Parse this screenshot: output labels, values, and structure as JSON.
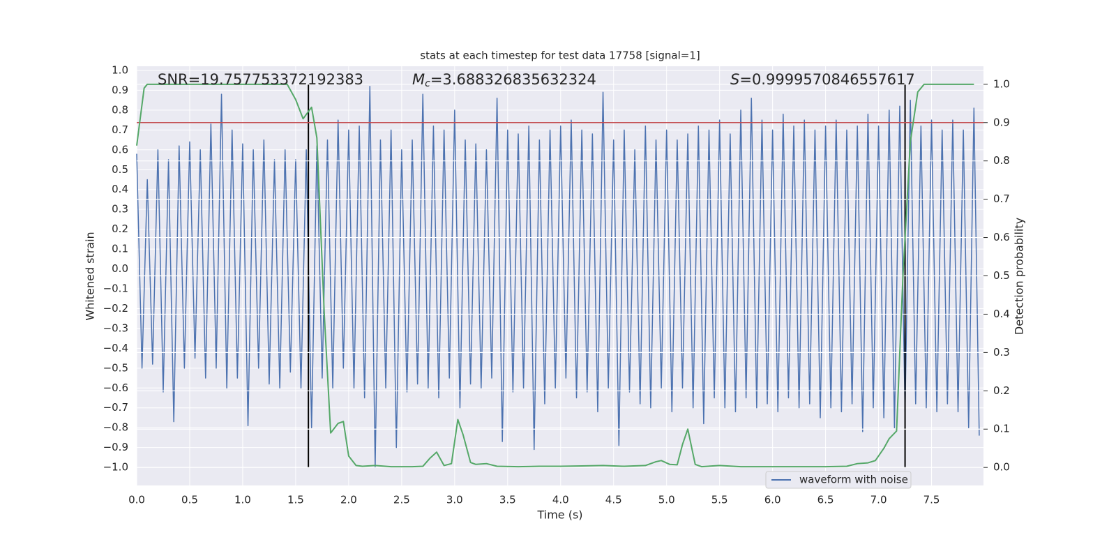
{
  "chart_data": {
    "type": "line",
    "title": "stats at each timestep for test data 17758 [signal=1]",
    "xlabel": "Time (s)",
    "ylabel": "Whitened strain",
    "y2label": "Detection probability",
    "background": "#eaeaf2",
    "grid": true,
    "legend": "lower right",
    "xlim": [
      0,
      7.99
    ],
    "ylim": [
      -1.091,
      1.021
    ],
    "y2lim": [
      -0.047,
      1.047
    ],
    "xticks": [
      {
        "value": 0,
        "label": "0.0"
      },
      0.5,
      {
        "value": 1,
        "label": "1.0"
      },
      1.5,
      {
        "value": 2,
        "label": "2.0"
      },
      2.5,
      {
        "value": 3,
        "label": "3.0"
      },
      3.5,
      {
        "value": 4,
        "label": "4.0"
      },
      4.5,
      {
        "value": 5,
        "label": "5.0"
      },
      5.5,
      {
        "value": 6,
        "label": "6.0"
      },
      6.5,
      {
        "value": 7,
        "label": "7.0"
      },
      7.5
    ],
    "yticks": [
      {
        "value": -1,
        "label": "−1.0"
      },
      {
        "value": -0.9,
        "label": "−0.9"
      },
      {
        "value": -0.8,
        "label": "−0.8"
      },
      {
        "value": -0.7,
        "label": "−0.7"
      },
      {
        "value": -0.6,
        "label": "−0.6"
      },
      {
        "value": -0.5,
        "label": "−0.5"
      },
      {
        "value": -0.4,
        "label": "−0.4"
      },
      {
        "value": -0.3,
        "label": "−0.3"
      },
      {
        "value": -0.2,
        "label": "−0.2"
      },
      {
        "value": -0.1,
        "label": "−0.1"
      },
      {
        "value": 0,
        "label": "0.0"
      },
      0.1,
      0.2,
      0.3,
      0.4,
      0.5,
      0.6,
      0.7,
      0.8,
      0.9,
      {
        "value": 1,
        "label": "1.0"
      }
    ],
    "y2ticks": [
      {
        "value": 0,
        "label": "0.0"
      },
      0.1,
      0.2,
      0.3,
      0.4,
      0.5,
      0.6,
      0.7,
      0.8,
      0.9,
      {
        "value": 1,
        "label": "1.0"
      }
    ],
    "annotations": [
      {
        "text": "SNR=19.757753372192383"
      },
      {
        "symbol": "M",
        "subscript": "c",
        "text": "=3.688326835632324"
      },
      {
        "symbol": "S",
        "text": "=0.9999570846557617"
      }
    ],
    "threshold": {
      "value": 0.9,
      "axis": "y2",
      "color": "#c44e52"
    },
    "vlines": {
      "x": [
        1.62,
        7.25
      ],
      "color": "#000000"
    },
    "series": [
      {
        "name": "waveform with noise",
        "color": "#4c72b0",
        "x": [
          0,
          0.05,
          0.1,
          0.15,
          0.2,
          0.25,
          0.3,
          0.35,
          0.4,
          0.45,
          0.5,
          0.55,
          0.6,
          0.65,
          0.7,
          0.75,
          0.8,
          0.85,
          0.9,
          0.95,
          1,
          1.05,
          1.1,
          1.15,
          1.2,
          1.25,
          1.3,
          1.35,
          1.4,
          1.45,
          1.5,
          1.55,
          1.6,
          1.65,
          1.7,
          1.75,
          1.8,
          1.85,
          1.9,
          1.95,
          2,
          2.05,
          2.1,
          2.15,
          2.2,
          2.25,
          2.3,
          2.35,
          2.4,
          2.45,
          2.5,
          2.55,
          2.6,
          2.65,
          2.7,
          2.75,
          2.8,
          2.85,
          2.9,
          2.95,
          3,
          3.05,
          3.1,
          3.15,
          3.2,
          3.25,
          3.3,
          3.35,
          3.4,
          3.45,
          3.5,
          3.55,
          3.6,
          3.65,
          3.7,
          3.75,
          3.8,
          3.85,
          3.9,
          3.95,
          4,
          4.05,
          4.1,
          4.15,
          4.2,
          4.25,
          4.3,
          4.35,
          4.4,
          4.45,
          4.5,
          4.55,
          4.6,
          4.65,
          4.7,
          4.75,
          4.8,
          4.85,
          4.9,
          4.95,
          5,
          5.05,
          5.1,
          5.15,
          5.2,
          5.25,
          5.3,
          5.35,
          5.4,
          5.45,
          5.5,
          5.55,
          5.6,
          5.65,
          5.7,
          5.75,
          5.8,
          5.85,
          5.9,
          5.95,
          6,
          6.05,
          6.1,
          6.15,
          6.2,
          6.25,
          6.3,
          6.35,
          6.4,
          6.45,
          6.5,
          6.55,
          6.6,
          6.65,
          6.7,
          6.75,
          6.8,
          6.85,
          6.9,
          6.95,
          7,
          7.05,
          7.1,
          7.15,
          7.2,
          7.25,
          7.3,
          7.35,
          7.4,
          7.45,
          7.5,
          7.55,
          7.6,
          7.65,
          7.7,
          7.75,
          7.8,
          7.85,
          7.9,
          7.95
        ],
        "values": [
          0.58,
          -0.5,
          0.45,
          -0.48,
          0.6,
          -0.62,
          0.55,
          -0.77,
          0.62,
          -0.5,
          0.64,
          -0.45,
          0.6,
          -0.55,
          0.73,
          -0.5,
          0.88,
          -0.6,
          0.7,
          -0.55,
          0.63,
          -0.79,
          0.6,
          -0.5,
          0.65,
          -0.58,
          0.55,
          -0.6,
          0.6,
          -0.52,
          0.55,
          -0.6,
          0.6,
          -0.8,
          0.62,
          -0.55,
          0.65,
          -0.6,
          0.75,
          -0.5,
          0.7,
          -0.6,
          0.72,
          -0.65,
          0.92,
          -1.0,
          0.65,
          -0.6,
          0.7,
          -0.9,
          0.6,
          -0.62,
          0.65,
          -0.58,
          0.88,
          -0.6,
          0.72,
          -0.65,
          0.7,
          -0.55,
          0.8,
          -0.7,
          0.65,
          -0.58,
          0.63,
          -0.6,
          0.6,
          -0.55,
          0.86,
          -0.87,
          0.7,
          -0.62,
          0.68,
          -0.6,
          0.72,
          -0.91,
          0.65,
          -0.68,
          0.7,
          -0.6,
          0.72,
          -0.55,
          0.75,
          -0.65,
          0.7,
          -0.62,
          0.68,
          -0.72,
          0.89,
          -0.6,
          0.65,
          -0.89,
          0.7,
          -0.62,
          0.6,
          -0.68,
          0.72,
          -0.7,
          0.65,
          -0.6,
          0.7,
          -0.72,
          0.65,
          -0.6,
          0.68,
          -0.7,
          0.72,
          -0.78,
          0.7,
          -0.65,
          0.75,
          -0.7,
          0.68,
          -0.72,
          0.8,
          -0.65,
          0.86,
          -0.7,
          0.75,
          -0.68,
          0.7,
          -0.72,
          0.78,
          -0.65,
          0.72,
          -0.7,
          0.75,
          -0.68,
          0.7,
          -0.75,
          0.72,
          -0.7,
          0.75,
          -0.72,
          0.7,
          -0.68,
          0.72,
          -0.82,
          0.78,
          -0.7,
          0.72,
          -0.75,
          0.8,
          -0.8,
          0.82,
          -0.72,
          0.85,
          -0.68,
          0.72,
          -0.7,
          0.75,
          -0.72,
          0.7,
          -0.68,
          0.75,
          -0.72,
          0.7,
          -0.8,
          0.81,
          -0.84
        ]
      },
      {
        "color": "#55a868",
        "axis": "y2",
        "x": [
          0,
          0.07,
          0.1,
          1.42,
          1.5,
          1.57,
          1.65,
          1.7,
          1.77,
          1.83,
          1.9,
          1.95,
          2,
          2.07,
          2.13,
          2.25,
          2.4,
          2.6,
          2.7,
          2.77,
          2.83,
          2.9,
          2.97,
          3.03,
          3.08,
          3.15,
          3.2,
          3.3,
          3.4,
          3.6,
          3.8,
          4,
          4.2,
          4.4,
          4.6,
          4.8,
          4.9,
          4.95,
          5.03,
          5.1,
          5.15,
          5.2,
          5.27,
          5.33,
          5.5,
          5.7,
          6,
          6.5,
          6.7,
          6.8,
          6.9,
          6.97,
          7.05,
          7.1,
          7.17,
          7.23,
          7.3,
          7.37,
          7.43,
          7.9
        ],
        "values": [
          0.84,
          0.99,
          1.0,
          1.0,
          0.96,
          0.91,
          0.94,
          0.86,
          0.4,
          0.09,
          0.115,
          0.12,
          0.03,
          0.005,
          0.003,
          0.005,
          0.002,
          0.002,
          0.003,
          0.025,
          0.04,
          0.005,
          0.01,
          0.125,
          0.085,
          0.013,
          0.008,
          0.01,
          0.003,
          0.002,
          0.003,
          0.003,
          0.004,
          0.005,
          0.003,
          0.005,
          0.015,
          0.018,
          0.008,
          0.007,
          0.06,
          0.1,
          0.008,
          0.002,
          0.005,
          0.002,
          0.002,
          0.002,
          0.003,
          0.01,
          0.012,
          0.018,
          0.05,
          0.075,
          0.095,
          0.5,
          0.85,
          0.98,
          1.0,
          1.0
        ]
      }
    ]
  }
}
